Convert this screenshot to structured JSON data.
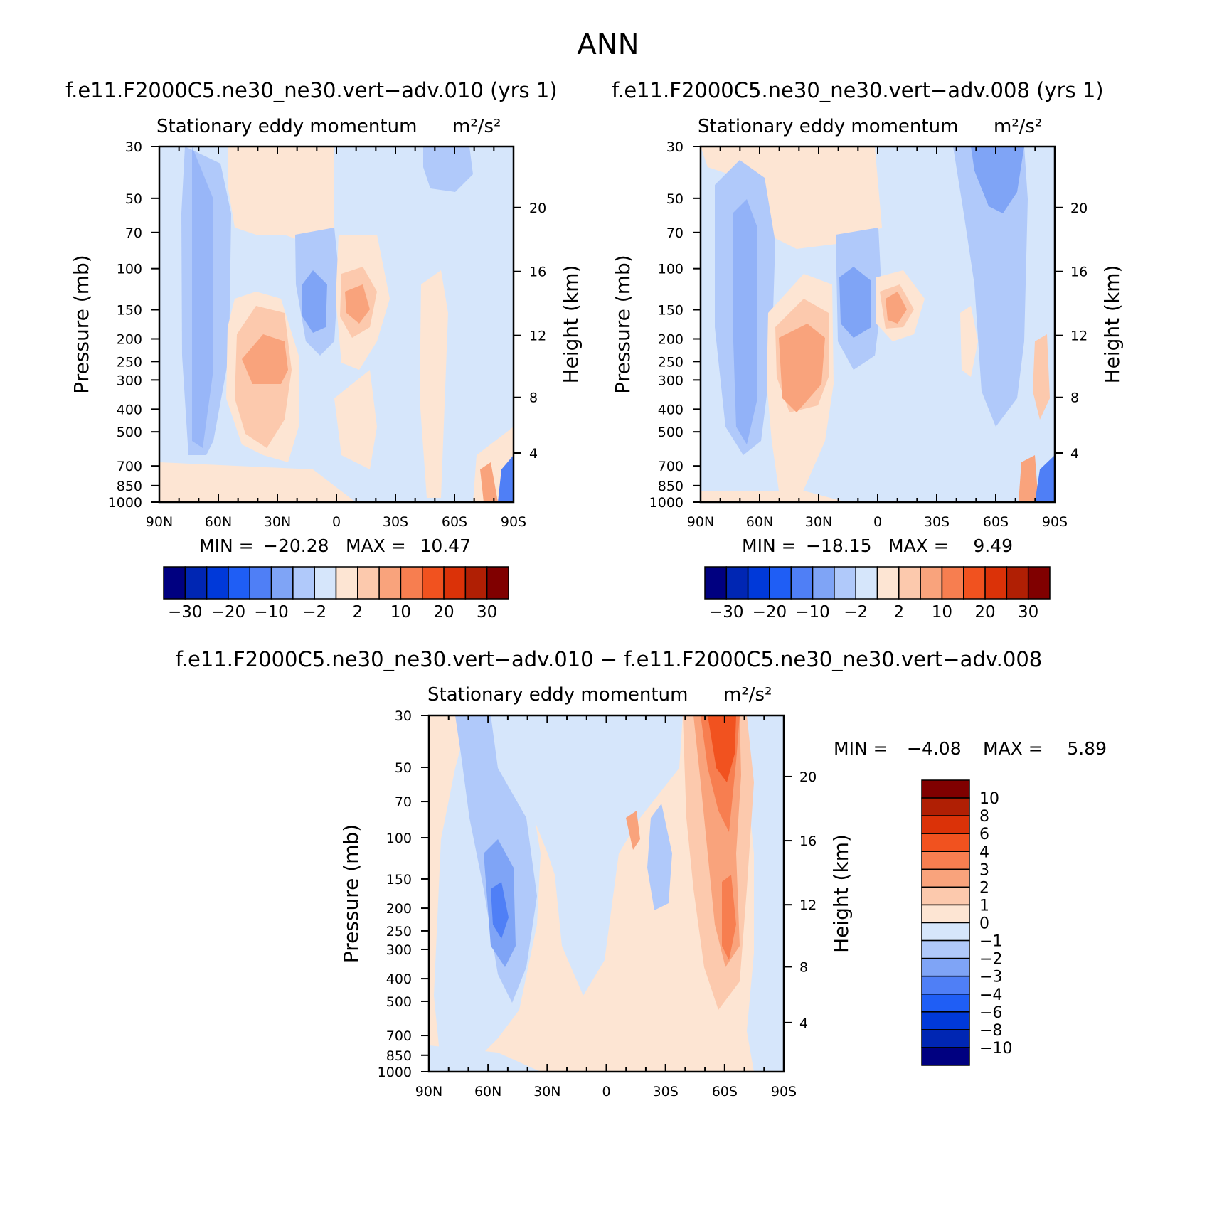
{
  "page_title": "ANN",
  "panel_titles": {
    "left": "f.e11.F2000C5.ne30_ne30.vert−adv.010 (yrs 1)",
    "right": "f.e11.F2000C5.ne30_ne30.vert−adv.008 (yrs 1)",
    "diff": "f.e11.F2000C5.ne30_ne30.vert−adv.010 − f.e11.F2000C5.ne30_ne30.vert−adv.008"
  },
  "subtitle": "Stationary eddy momentum",
  "units": "m²/s²",
  "axis_labels": {
    "left": "Pressure (mb)",
    "right": "Height (km)"
  },
  "stats": {
    "left": {
      "min_label": "MIN =",
      "min": "−20.28",
      "max_label": "MAX =",
      "max": "10.47"
    },
    "right": {
      "min_label": "MIN =",
      "min": "−18.15",
      "max_label": "MAX =",
      "max": "9.49"
    },
    "diff": {
      "min_label": "MIN =",
      "min": "−4.08",
      "max_label": "MAX =",
      "max": "5.89"
    }
  },
  "chart_data": [
    {
      "type": "heatmap",
      "panel": "left",
      "title": "f.e11.F2000C5.ne30_ne30.vert−adv.010 (yrs 1)",
      "subtitle": "Stationary eddy momentum m²/s²",
      "xlabel": "",
      "ylabel": "Pressure (mb)",
      "ylabel_right": "Height (km)",
      "x_ticks": [
        "90N",
        "60N",
        "30N",
        "0",
        "30S",
        "60S",
        "90S"
      ],
      "y_ticks": [
        30,
        50,
        70,
        100,
        150,
        200,
        250,
        300,
        400,
        500,
        700,
        850,
        1000
      ],
      "y_right_ticks": [
        20,
        16,
        12,
        8,
        4
      ],
      "y_scale": "log",
      "min": -20.28,
      "max": 10.47,
      "colorbar_levels": [
        "−30",
        "−20",
        "−10",
        "−2",
        "2",
        "10",
        "20",
        "30"
      ],
      "features": [
        {
          "lat": 65,
          "p": 150,
          "value": -5
        },
        {
          "lat": 30,
          "p": 270,
          "value": 5
        },
        {
          "lat": 10,
          "p": 150,
          "value": -10
        },
        {
          "lat": -8,
          "p": 150,
          "value": 10
        },
        {
          "lat": -55,
          "p": 40,
          "value": -5
        }
      ]
    },
    {
      "type": "heatmap",
      "panel": "right",
      "title": "f.e11.F2000C5.ne30_ne30.vert−adv.008 (yrs 1)",
      "subtitle": "Stationary eddy momentum m²/s²",
      "xlabel": "",
      "ylabel": "Pressure (mb)",
      "ylabel_right": "Height (km)",
      "x_ticks": [
        "90N",
        "60N",
        "30N",
        "0",
        "30S",
        "60S",
        "90S"
      ],
      "y_ticks": [
        30,
        50,
        70,
        100,
        150,
        200,
        250,
        300,
        400,
        500,
        700,
        850,
        1000
      ],
      "y_right_ticks": [
        20,
        16,
        12,
        8,
        4
      ],
      "y_scale": "log",
      "min": -18.15,
      "max": 9.49,
      "colorbar_levels": [
        "−30",
        "−20",
        "−10",
        "−2",
        "2",
        "10",
        "20",
        "30"
      ],
      "features": [
        {
          "lat": 65,
          "p": 250,
          "value": -5
        },
        {
          "lat": 35,
          "p": 280,
          "value": 5
        },
        {
          "lat": 12,
          "p": 150,
          "value": -10
        },
        {
          "lat": -8,
          "p": 150,
          "value": 5
        },
        {
          "lat": -60,
          "p": 45,
          "value": -5
        }
      ]
    },
    {
      "type": "heatmap",
      "panel": "difference",
      "title": "f.e11.F2000C5.ne30_ne30.vert−adv.010 − f.e11.F2000C5.ne30_ne30.vert−adv.008",
      "subtitle": "Stationary eddy momentum m²/s²",
      "xlabel": "",
      "ylabel": "Pressure (mb)",
      "ylabel_right": "Height (km)",
      "x_ticks": [
        "90N",
        "60N",
        "30N",
        "0",
        "30S",
        "60S",
        "90S"
      ],
      "y_ticks": [
        30,
        50,
        70,
        100,
        150,
        200,
        250,
        300,
        400,
        500,
        700,
        850,
        1000
      ],
      "y_right_ticks": [
        20,
        16,
        12,
        8,
        4
      ],
      "y_scale": "log",
      "min": -4.08,
      "max": 5.89,
      "colorbar_levels": [
        "10",
        "8",
        "6",
        "4",
        "3",
        "2",
        "1",
        "0",
        "−1",
        "−2",
        "−3",
        "−4",
        "−6",
        "−8",
        "−10"
      ],
      "features": [
        {
          "lat": 55,
          "p": 250,
          "value": -3.5
        },
        {
          "lat": -60,
          "p": 40,
          "value": 5
        },
        {
          "lat": -60,
          "p": 250,
          "value": 3.5
        }
      ]
    }
  ],
  "colors": {
    "diverging": [
      "#000080",
      "#0026b3",
      "#0039d9",
      "#1f5ef5",
      "#4f7ff6",
      "#7fa4f6",
      "#b0c9fa",
      "#d6e6fb",
      "#fde5d3",
      "#fcc9ad",
      "#f9a37c",
      "#f77e50",
      "#f1521f",
      "#db3208",
      "#b01f04",
      "#800000"
    ],
    "diff_bar": [
      "#800000",
      "#b01f04",
      "#db3208",
      "#f1521f",
      "#f77e50",
      "#f9a37c",
      "#fcc9ad",
      "#fde5d3",
      "#d6e6fb",
      "#b0c9fa",
      "#7fa4f6",
      "#4f7ff6",
      "#1f5ef5",
      "#0039d9",
      "#0026b3",
      "#000080"
    ]
  }
}
